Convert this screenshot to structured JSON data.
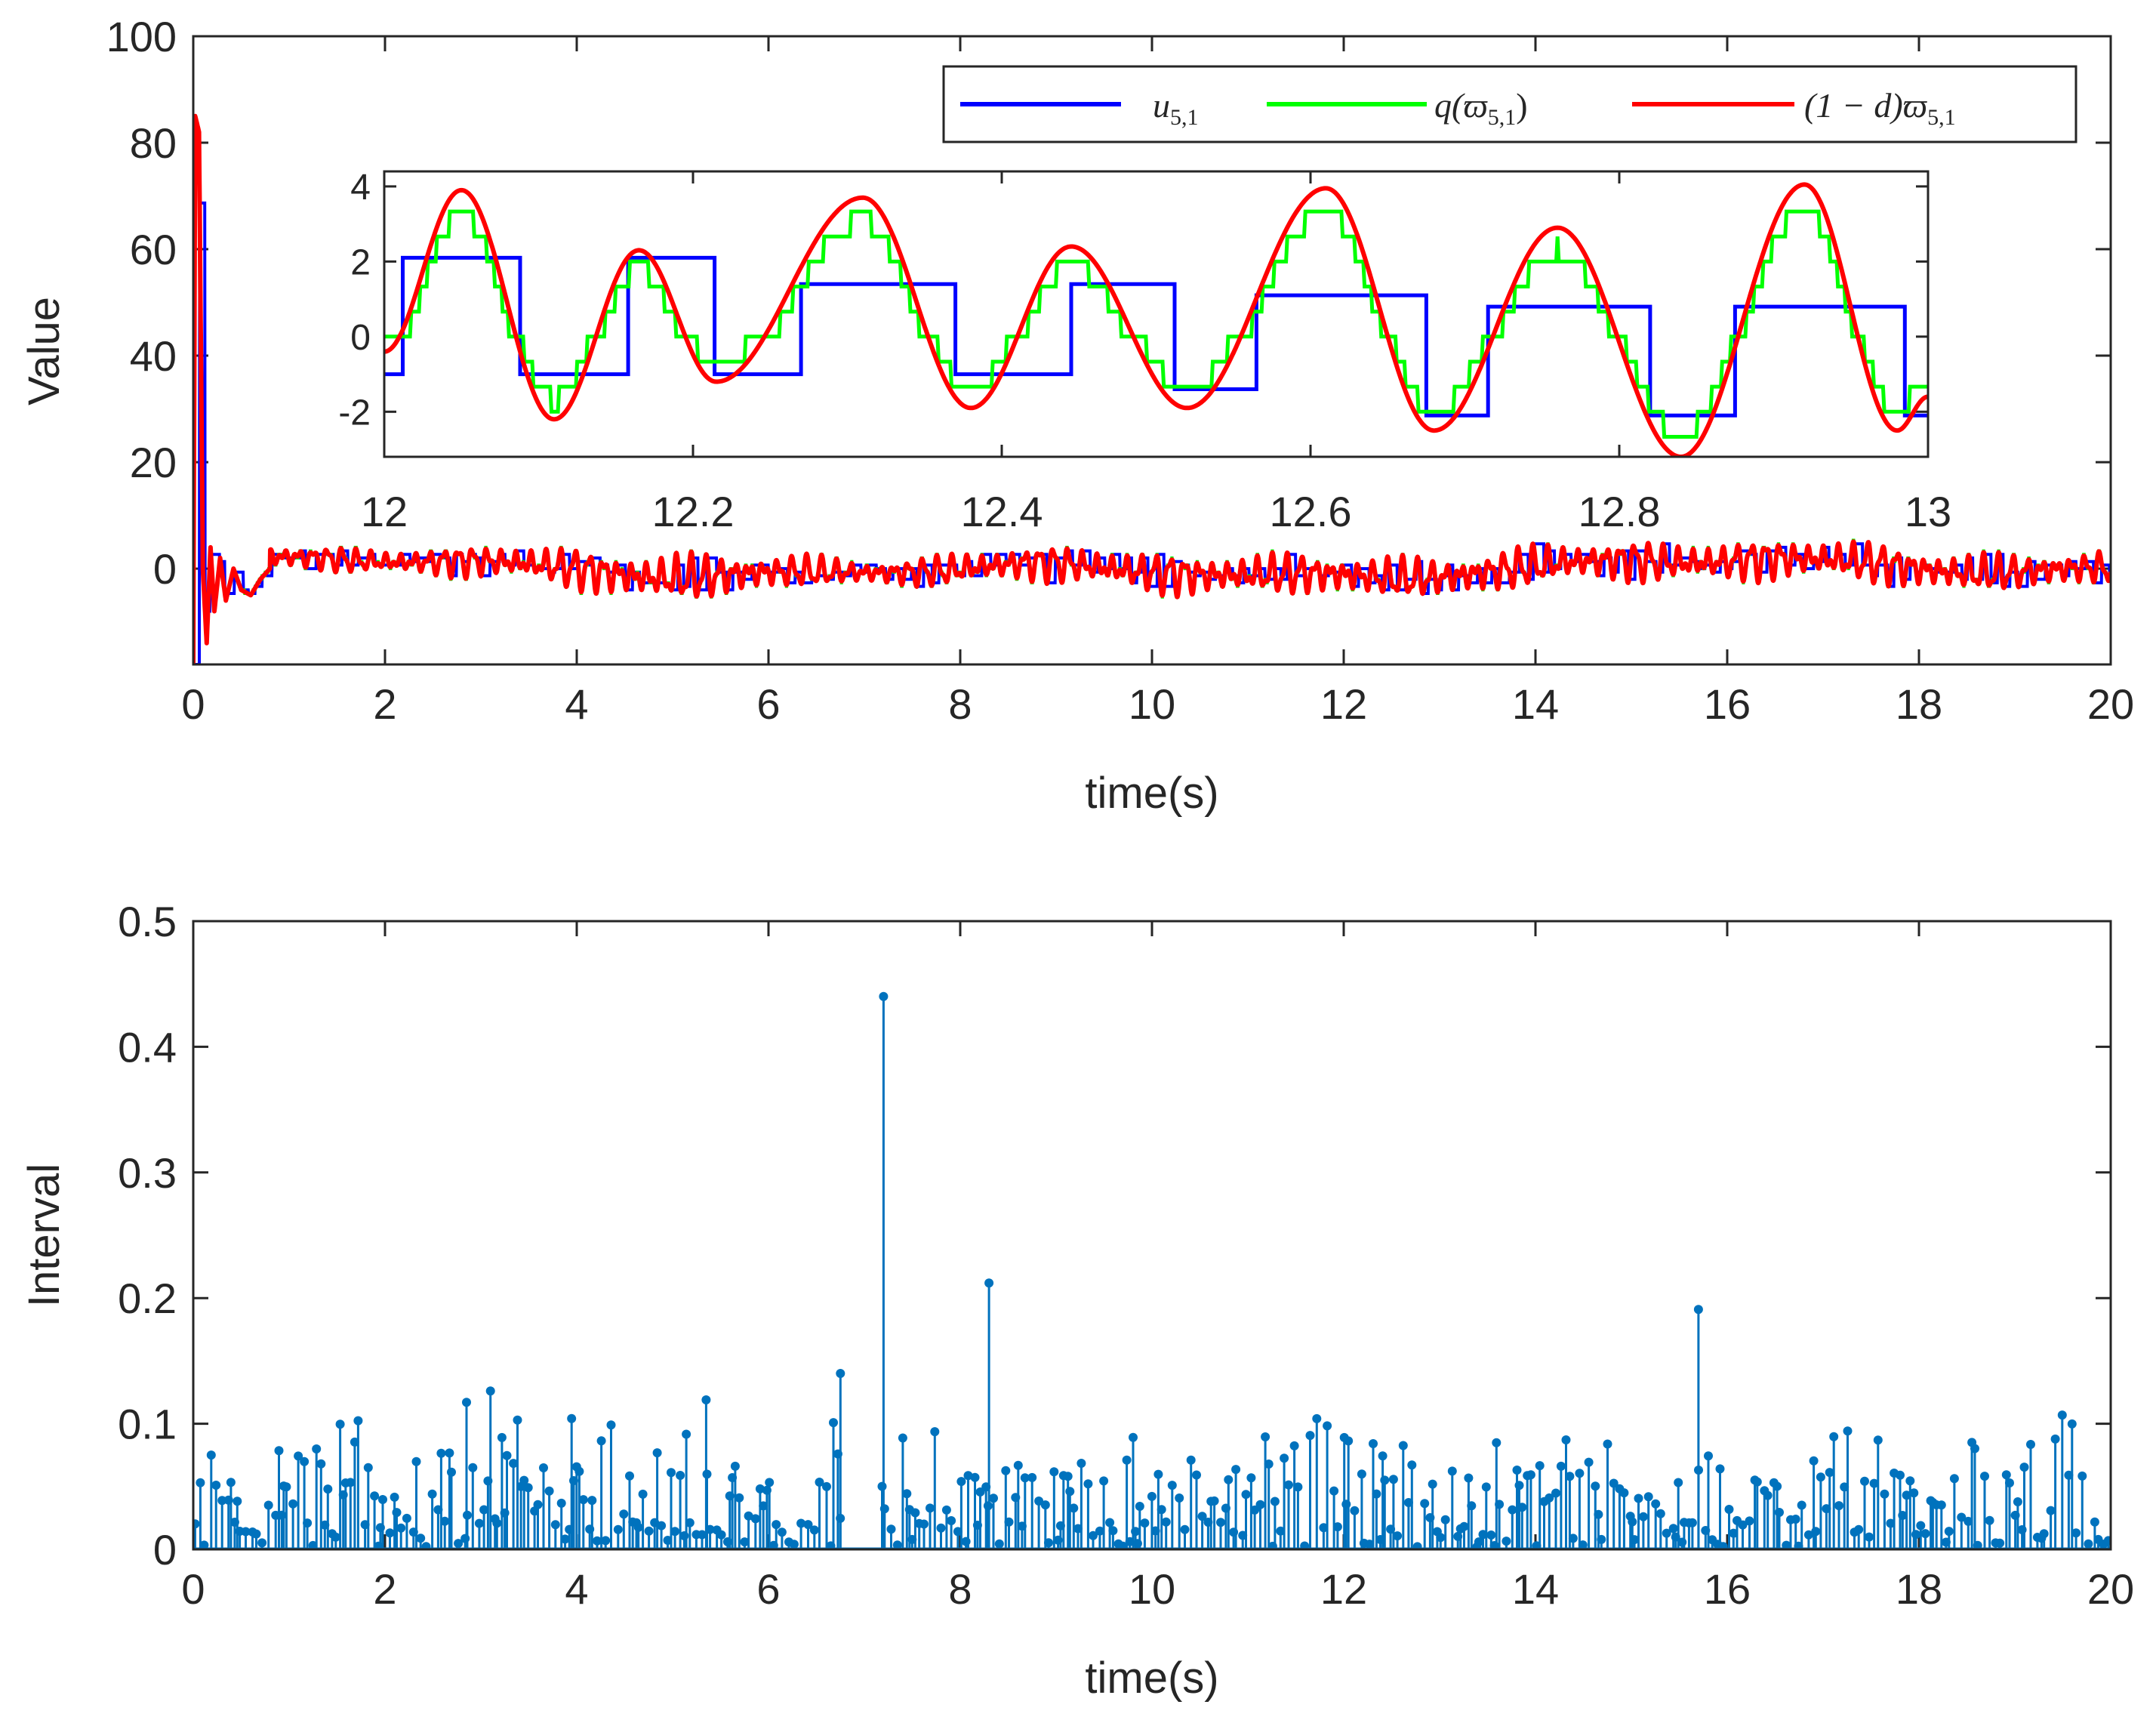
{
  "chart_data": [
    {
      "type": "line",
      "name": "top-panel",
      "ylabel": "Value",
      "xlabel": "time(s)",
      "xlim": [
        0,
        20
      ],
      "ylim": [
        -18,
        100
      ],
      "xticks": [
        "0",
        "2",
        "4",
        "6",
        "8",
        "10",
        "12",
        "14",
        "16",
        "18",
        "20"
      ],
      "yticks": [
        "0",
        "20",
        "40",
        "60",
        "80",
        "100"
      ],
      "legend": {
        "placement": "top-right",
        "entries": [
          {
            "label": "u",
            "sub": "5,1",
            "color": "#0000ff"
          },
          {
            "label": "q(ϖ",
            "sub": "5,1",
            "tail": ")",
            "color": "#00ff00"
          },
          {
            "label": "(1 − d)ϖ",
            "sub": "5,1",
            "color": "#ff0000"
          }
        ]
      },
      "series": [
        {
          "name": "u_{5,1}",
          "color": "#0000ff",
          "description": "event-triggered step signal, oscillating about 0 after transient"
        },
        {
          "name": "q(varpi_{5,1})",
          "color": "#00ff00",
          "description": "quantized signal"
        },
        {
          "name": "(1-d)varpi_{5,1}",
          "color": "#ff0000",
          "description": "continuous signal, peak 85 near t=0.03, minimum -18 at t=0"
        }
      ],
      "transient": [
        [
          0,
          -18
        ],
        [
          0.02,
          85
        ],
        [
          0.06,
          82
        ],
        [
          0.1,
          0
        ],
        [
          0.14,
          -14
        ],
        [
          0.18,
          4
        ],
        [
          0.22,
          -8
        ],
        [
          0.28,
          2
        ],
        [
          0.34,
          -6
        ],
        [
          0.42,
          0
        ],
        [
          0.5,
          -4
        ],
        [
          0.6,
          -5
        ],
        [
          0.7,
          -2
        ],
        [
          0.8,
          0
        ]
      ],
      "envelope": [
        [
          0.8,
          3
        ],
        [
          2,
          3
        ],
        [
          4,
          5
        ],
        [
          5,
          6
        ],
        [
          7,
          3
        ],
        [
          8,
          4
        ],
        [
          10,
          5
        ],
        [
          12,
          5
        ],
        [
          14,
          5
        ],
        [
          16,
          5
        ],
        [
          18,
          5
        ],
        [
          20,
          4
        ]
      ],
      "inset": {
        "xlim": [
          12,
          13
        ],
        "ylim": [
          -3.2,
          4.4
        ],
        "xticks": [
          "12",
          "12.2",
          "12.4",
          "12.6",
          "12.8",
          "13"
        ],
        "yticks": [
          "4",
          "2",
          "0",
          "-2"
        ],
        "red_peaks": [
          [
            12.0,
            -0.4
          ],
          [
            12.05,
            3.9
          ],
          [
            12.11,
            -2.2
          ],
          [
            12.165,
            2.3
          ],
          [
            12.215,
            -1.2
          ],
          [
            12.31,
            3.7
          ],
          [
            12.38,
            -1.9
          ],
          [
            12.445,
            2.4
          ],
          [
            12.52,
            -1.9
          ],
          [
            12.61,
            3.95
          ],
          [
            12.68,
            -2.5
          ],
          [
            12.76,
            2.9
          ],
          [
            12.84,
            -3.2
          ],
          [
            12.92,
            4.05
          ],
          [
            12.98,
            -2.5
          ],
          [
            13.0,
            -1.6
          ]
        ],
        "u_steps": [
          [
            12.0,
            -1
          ],
          [
            12.012,
            2.1
          ],
          [
            12.088,
            -1
          ],
          [
            12.158,
            2.1
          ],
          [
            12.214,
            -1
          ],
          [
            12.27,
            1.4
          ],
          [
            12.37,
            -1
          ],
          [
            12.445,
            1.4
          ],
          [
            12.512,
            -1.4
          ],
          [
            12.565,
            1.1
          ],
          [
            12.675,
            -2.1
          ],
          [
            12.715,
            0.8
          ],
          [
            12.82,
            -2.1
          ],
          [
            12.875,
            0.8
          ],
          [
            12.985,
            -2.1
          ],
          [
            13.0,
            -2.1
          ]
        ],
        "q_levels": [
          0,
          0.667,
          1.333,
          2,
          2.667,
          3.333
        ]
      }
    },
    {
      "type": "stem",
      "name": "bottom-panel",
      "ylabel": "Interval",
      "xlabel": "time(s)",
      "xlim": [
        0,
        20
      ],
      "ylim": [
        0,
        0.5
      ],
      "xticks": [
        "0",
        "2",
        "4",
        "6",
        "8",
        "10",
        "12",
        "14",
        "16",
        "18",
        "20"
      ],
      "yticks": [
        "0",
        "0.1",
        "0.2",
        "0.3",
        "0.4",
        "0.5"
      ],
      "color": "#0072bd",
      "outliers": [
        [
          7.2,
          0.44
        ],
        [
          8.3,
          0.212
        ],
        [
          15.7,
          0.191
        ],
        [
          6.75,
          0.14
        ],
        [
          3.1,
          0.126
        ],
        [
          5.35,
          0.119
        ],
        [
          2.85,
          0.117
        ]
      ],
      "typical_max": 0.115,
      "approx_count": 520
    }
  ]
}
